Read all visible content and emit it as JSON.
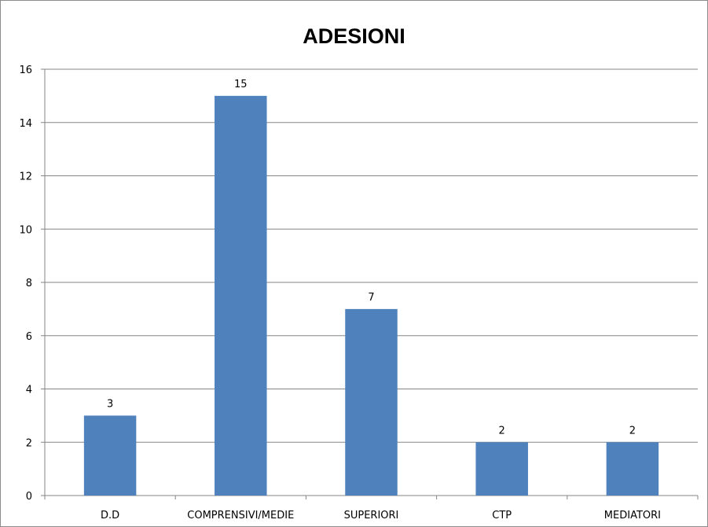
{
  "chart_data": {
    "type": "bar",
    "title": "ADESIONI",
    "xlabel": "",
    "ylabel": "",
    "categories": [
      "D.D",
      "COMPRENSIVI/MEDIE",
      "SUPERIORI",
      "CTP",
      "MEDIATORI"
    ],
    "values": [
      3,
      15,
      7,
      2,
      2
    ],
    "data_labels": [
      "3",
      "15",
      "7",
      "2",
      "2"
    ],
    "ylim": [
      0,
      16
    ],
    "yticks": [
      "0",
      "2",
      "4",
      "6",
      "8",
      "10",
      "12",
      "14",
      "16"
    ],
    "grid": true,
    "legend": "none",
    "bar_color": "#4f81bd",
    "grid_color": "#868686"
  }
}
